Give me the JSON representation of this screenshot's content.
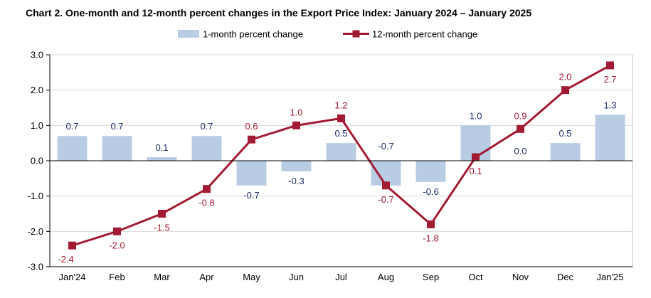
{
  "chart_data": {
    "type": "bar",
    "title": "Chart 2. One-month and 12-month percent changes in the Export Price Index: January 2024 – January 2025",
    "categories": [
      "Jan'24",
      "Feb",
      "Mar",
      "Apr",
      "May",
      "Jun",
      "Jul",
      "Aug",
      "Sep",
      "Oct",
      "Nov",
      "Dec",
      "Jan'25"
    ],
    "series": [
      {
        "name": "1-month percent change",
        "type": "bar",
        "color": "#b8cce4",
        "values": [
          0.7,
          0.7,
          0.1,
          0.7,
          -0.7,
          -0.3,
          0.5,
          -0.7,
          -0.6,
          1.0,
          0.0,
          0.5,
          1.3
        ]
      },
      {
        "name": "12-month percent change",
        "type": "line",
        "color": "#a31b32",
        "values": [
          -2.4,
          -2.0,
          -1.5,
          -0.8,
          0.6,
          1.0,
          1.2,
          -0.7,
          -1.8,
          0.1,
          0.9,
          2.0,
          2.7
        ]
      }
    ],
    "bar_labels": [
      "0.7",
      "0.7",
      "0.1",
      "0.7",
      "-0.7",
      "-0.3",
      "0.5",
      "-0.7",
      "-0.6",
      "1.0",
      "0.0",
      "0.5",
      "1.3"
    ],
    "line_labels": [
      "-2.4",
      "-2.0",
      "-1.5",
      "-0.8",
      "0.6",
      "1.0",
      "1.2",
      "-0.7",
      "-1.8",
      "0.1",
      "0.9",
      "2.0",
      "2.7"
    ],
    "yticks": [
      3.0,
      2.0,
      1.0,
      0.0,
      -1.0,
      -2.0,
      -3.0
    ],
    "ytick_labels": [
      "3.0",
      "2.0",
      "1.0",
      "0.0",
      "-1.0",
      "-2.0",
      "-3.0"
    ],
    "ylim": [
      -3.0,
      3.0
    ],
    "xlabel": "",
    "ylabel": "",
    "grid": true,
    "legend": "top-center"
  },
  "colors": {
    "bar_label": "#1f2d6b",
    "line_label": "#a31b32",
    "grid": "#d9d9d9",
    "axis": "#000000"
  }
}
